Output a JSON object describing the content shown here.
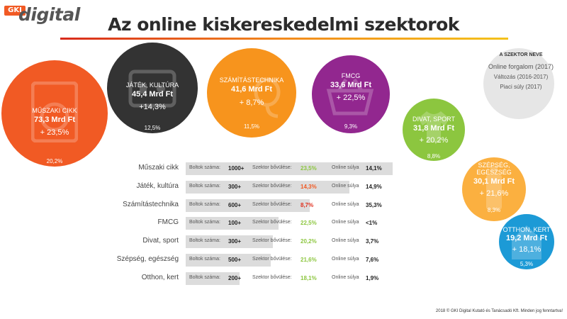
{
  "logo": {
    "prefix": "GKI",
    "word": "digital"
  },
  "title": "Az online kiskereskedelmi szektorok",
  "legend": {
    "title": "A SZEKTOR NEVE",
    "line1": "Online forgalom (2017)",
    "line2": "Változás (2016-2017)",
    "line3": "Piaci súly (2017)"
  },
  "colors": {
    "muszaki": "#f15a24",
    "jatek": "#333333",
    "szamitas": "#f7941d",
    "fmcg": "#92278f",
    "divat": "#8cc63f",
    "szepseg": "#fbb040",
    "otthon": "#1c9ad6",
    "change_green": "#8cc63f",
    "change_orange": "#f15a24",
    "change_red": "#e0301e"
  },
  "sectors": [
    {
      "name": "MŰSZAKI CIKK",
      "value": "73,3 Mrd Ft",
      "change": "+ 23,5%",
      "share": "20,2%",
      "icon": "washing-machine-icon"
    },
    {
      "name": "JÁTÉK, KULTÚRA",
      "value": "45,4 Mrd Ft",
      "change": "+14,3%",
      "share": "12,5%",
      "icon": "gamepad-icon"
    },
    {
      "name": "SZÁMÍTÁSTECHNIKA",
      "value": "41,6 Mrd Ft",
      "change": "+ 8,7%",
      "share": "11,5%",
      "icon": "mouse-icon"
    },
    {
      "name": "FMCG",
      "value": "33,6 Mrd Ft",
      "change": "+ 22,5%",
      "share": "9,3%",
      "icon": "basket-icon"
    },
    {
      "name": "DIVAT, SPORT",
      "value": "31,8 Mrd Ft",
      "change": "+ 20,2%",
      "share": "8,8%",
      "icon": "shirt-icon"
    },
    {
      "name": "SZÉPSÉG, EGÉSZSÉG",
      "value": "30,1 Mrd Ft",
      "change": "+ 21,6%",
      "share": "8,3%",
      "icon": "bottle-icon"
    },
    {
      "name": "OTTHON, KERT",
      "value": "19,2 Mrd Ft",
      "change": "+ 18,1%",
      "share": "5,3%",
      "icon": "house-icon"
    }
  ],
  "table": {
    "col_shops": "Boltok száma:",
    "col_growth": "Szektor bővülése:",
    "col_weight": "Online súlya"
  },
  "chart_data": {
    "type": "table",
    "title": "Az online kiskereskedelmi szektorok",
    "rows": [
      {
        "label": "Műszaki cikk",
        "shops": "1000+",
        "growth": "23,5%",
        "online_share": "14,1%",
        "bar": 1.0
      },
      {
        "label": "Játék, kultúra",
        "shops": "300+",
        "growth": "14,3%",
        "online_share": "14,9%",
        "bar": 0.79
      },
      {
        "label": "Számítástechnika",
        "shops": "600+",
        "growth": "8,7%",
        "online_share": "35,3%",
        "bar": 0.6
      },
      {
        "label": "FMCG",
        "shops": "100+",
        "growth": "22,5%",
        "online_share": "<1%",
        "bar": 0.45
      },
      {
        "label": "Divat, sport",
        "shops": "300+",
        "growth": "20,2%",
        "online_share": "3,7%",
        "bar": 0.42
      },
      {
        "label": "Szépség, egészség",
        "shops": "500+",
        "growth": "21,6%",
        "online_share": "7,6%",
        "bar": 0.41
      },
      {
        "label": "Otthon, kert",
        "shops": "200+",
        "growth": "18,1%",
        "online_share": "1,9%",
        "bar": 0.26
      }
    ]
  },
  "footer": "2018 © GKI Digital Kutató és Tanácsadó Kft. Minden jog fenntartva!"
}
